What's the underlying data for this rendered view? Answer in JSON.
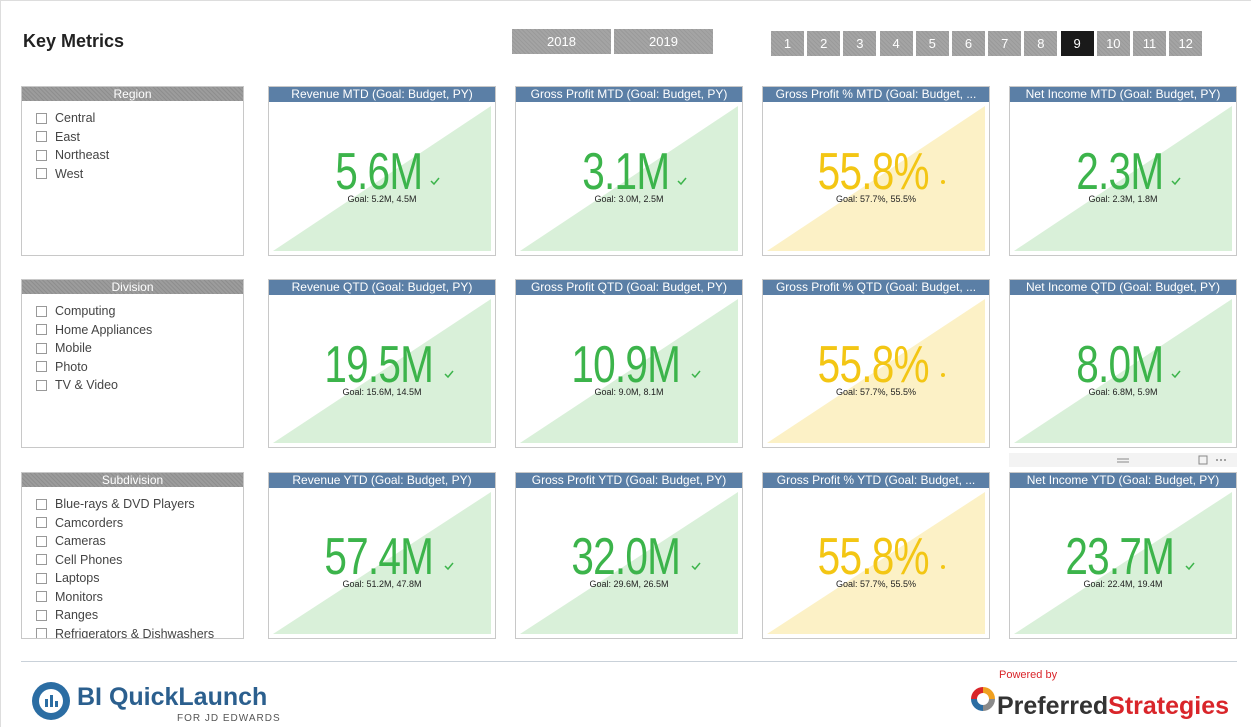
{
  "header": {
    "title": "Key Metrics"
  },
  "years": [
    "2018",
    "2019"
  ],
  "months": [
    "1",
    "2",
    "3",
    "4",
    "5",
    "6",
    "7",
    "8",
    "9",
    "10",
    "11",
    "12"
  ],
  "selected_month": "9",
  "slicers": [
    {
      "title": "Region",
      "items": [
        "Central",
        "East",
        "Northeast",
        "West"
      ]
    },
    {
      "title": "Division",
      "items": [
        "Computing",
        "Home Appliances",
        "Mobile",
        "Photo",
        "TV & Video"
      ]
    },
    {
      "title": "Subdivision",
      "items": [
        "Blue-rays & DVD Players",
        "Camcorders",
        "Cameras",
        "Cell Phones",
        "Laptops",
        "Monitors",
        "Ranges",
        "Refrigerators & Dishwashers"
      ]
    }
  ],
  "cards": [
    {
      "title": "Revenue MTD (Goal: Budget, PY)",
      "value": "5.6M",
      "goal": "Goal: 5.2M, 4.5M",
      "color": "#3cb44b",
      "fill": "#d9f0d9",
      "indicator": "check"
    },
    {
      "title": "Gross Profit MTD (Goal: Budget, PY)",
      "value": "3.1M",
      "goal": "Goal: 3.0M, 2.5M",
      "color": "#3cb44b",
      "fill": "#d9f0d9",
      "indicator": "check"
    },
    {
      "title": "Gross Profit % MTD (Goal: Budget, ...",
      "value": "55.8%",
      "goal": "Goal: 57.7%, 55.5%",
      "color": "#f3c614",
      "fill": "#fcf1c6",
      "indicator": "dot"
    },
    {
      "title": "Net Income MTD (Goal: Budget, PY)",
      "value": "2.3M",
      "goal": "Goal: 2.3M, 1.8M",
      "color": "#3cb44b",
      "fill": "#d9f0d9",
      "indicator": "check"
    },
    {
      "title": "Revenue QTD (Goal: Budget, PY)",
      "value": "19.5M",
      "goal": "Goal: 15.6M, 14.5M",
      "color": "#3cb44b",
      "fill": "#d9f0d9",
      "indicator": "check"
    },
    {
      "title": "Gross Profit QTD (Goal: Budget, PY)",
      "value": "10.9M",
      "goal": "Goal: 9.0M, 8.1M",
      "color": "#3cb44b",
      "fill": "#d9f0d9",
      "indicator": "check"
    },
    {
      "title": "Gross Profit % QTD (Goal: Budget, ...",
      "value": "55.8%",
      "goal": "Goal: 57.7%, 55.5%",
      "color": "#f3c614",
      "fill": "#fcf1c6",
      "indicator": "dot"
    },
    {
      "title": "Net Income QTD (Goal: Budget, PY)",
      "value": "8.0M",
      "goal": "Goal: 6.8M, 5.9M",
      "color": "#3cb44b",
      "fill": "#d9f0d9",
      "indicator": "check"
    },
    {
      "title": "Revenue YTD (Goal: Budget, PY)",
      "value": "57.4M",
      "goal": "Goal: 51.2M, 47.8M",
      "color": "#3cb44b",
      "fill": "#d9f0d9",
      "indicator": "check"
    },
    {
      "title": "Gross Profit YTD (Goal: Budget, PY)",
      "value": "32.0M",
      "goal": "Goal: 29.6M, 26.5M",
      "color": "#3cb44b",
      "fill": "#d9f0d9",
      "indicator": "check"
    },
    {
      "title": "Gross Profit % YTD (Goal: Budget, ...",
      "value": "55.8%",
      "goal": "Goal: 57.7%, 55.5%",
      "color": "#f3c614",
      "fill": "#fcf1c6",
      "indicator": "dot"
    },
    {
      "title": "Net Income YTD (Goal: Budget, PY)",
      "value": "23.7M",
      "goal": "Goal: 22.4M, 19.4M",
      "color": "#3cb44b",
      "fill": "#d9f0d9",
      "indicator": "check"
    }
  ],
  "footer": {
    "logo": "BI QuickLaunch",
    "logo_sub": "FOR JD EDWARDS",
    "powered_by": "Powered by",
    "brand_a": "Preferred",
    "brand_b": "Strategies"
  }
}
